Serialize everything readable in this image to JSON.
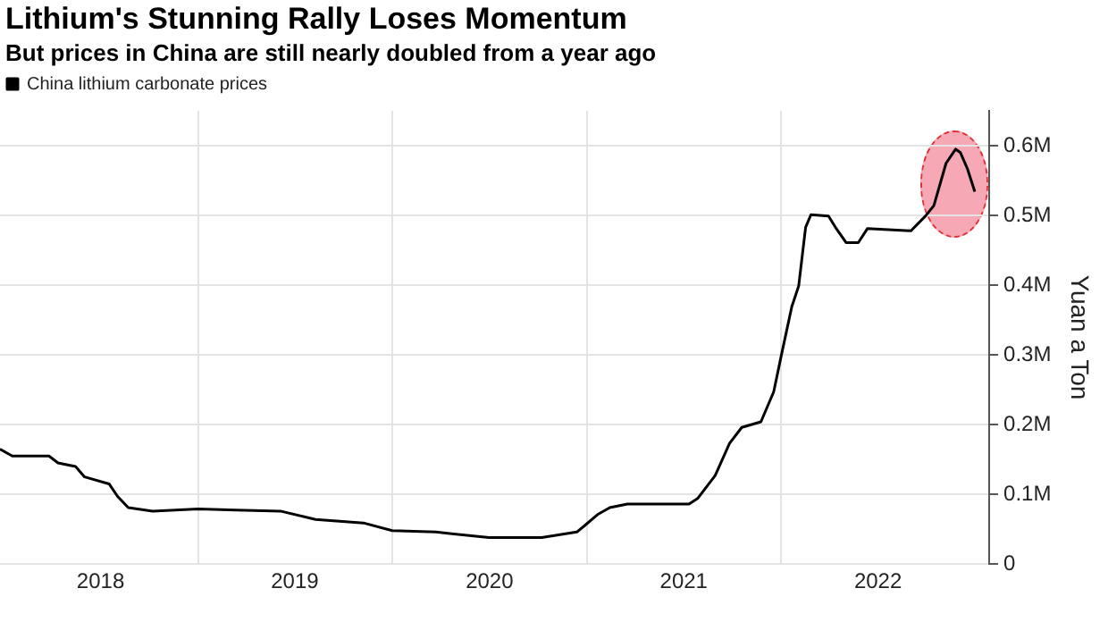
{
  "chart_data": {
    "type": "line",
    "title": "Lithium's Stunning Rally Loses Momentum",
    "subtitle": "But prices in China are still nearly doubled from a year ago",
    "y2label": "Yuan a Ton",
    "x": [
      "2017-12-25",
      "2018-01-17",
      "2018-03-27",
      "2018-04-13",
      "2018-05-16",
      "2018-06-02",
      "2018-07-18",
      "2018-08-03",
      "2018-08-23",
      "2018-10-08",
      "2019-01-01",
      "2019-06-05",
      "2019-08-10",
      "2019-11-08",
      "2020-01-01",
      "2020-03-23",
      "2020-07-01",
      "2020-10-08",
      "2020-12-13",
      "2020-12-29",
      "2021-01-21",
      "2021-02-13",
      "2021-03-18",
      "2021-07-12",
      "2021-07-28",
      "2021-08-30",
      "2021-09-26",
      "2021-10-19",
      "2021-11-24",
      "2021-12-18",
      "2022-01-01",
      "2022-01-21",
      "2022-02-03",
      "2022-02-16",
      "2022-02-26",
      "2022-03-31",
      "2022-04-13",
      "2022-05-03",
      "2022-05-26",
      "2022-06-12",
      "2022-09-02",
      "2022-09-29",
      "2022-10-15",
      "2022-11-07",
      "2022-11-25",
      "2022-12-04",
      "2022-12-17",
      "2022-12-31"
    ],
    "series": [
      {
        "name": "China lithium carbonate prices",
        "color": "#000000",
        "axis": "y2",
        "values": [
          165000,
          155000,
          155000,
          145000,
          140000,
          125000,
          115000,
          97000,
          81000,
          76000,
          79000,
          76000,
          64000,
          59000,
          48000,
          46000,
          38000,
          38000,
          46000,
          56000,
          71000,
          81000,
          86000,
          86000,
          94000,
          127000,
          173000,
          196000,
          204000,
          247000,
          298000,
          369000,
          399000,
          483000,
          501000,
          499000,
          483000,
          461000,
          461000,
          481000,
          478000,
          499000,
          514000,
          575000,
          595000,
          590000,
          567000,
          534000
        ]
      }
    ],
    "xlim": [
      "2017-12-25",
      "2023-01-27"
    ],
    "xticks": [
      {
        "value": "2018-07-02",
        "label": "2018"
      },
      {
        "value": "2019-01-01",
        "label": null
      },
      {
        "value": "2019-07-02",
        "label": "2019"
      },
      {
        "value": "2020-01-01",
        "label": null
      },
      {
        "value": "2020-07-02",
        "label": "2020"
      },
      {
        "value": "2021-01-01",
        "label": null
      },
      {
        "value": "2021-07-02",
        "label": "2021"
      },
      {
        "value": "2022-01-01",
        "label": null
      },
      {
        "value": "2022-07-02",
        "label": "2022"
      }
    ],
    "y2lim": [
      0,
      650000
    ],
    "y2ticks": [
      0,
      {
        "value": 100000,
        "label": "0.1M"
      },
      {
        "value": 200000,
        "label": "0.2M"
      },
      {
        "value": 300000,
        "label": "0.3M"
      },
      {
        "value": 400000,
        "label": "0.4M"
      },
      {
        "value": 500000,
        "label": "0.5M"
      },
      {
        "value": 600000,
        "label": "0.6M"
      }
    ],
    "grid": true,
    "legend": "top left",
    "marker": "none",
    "line_style": "solid"
  }
}
